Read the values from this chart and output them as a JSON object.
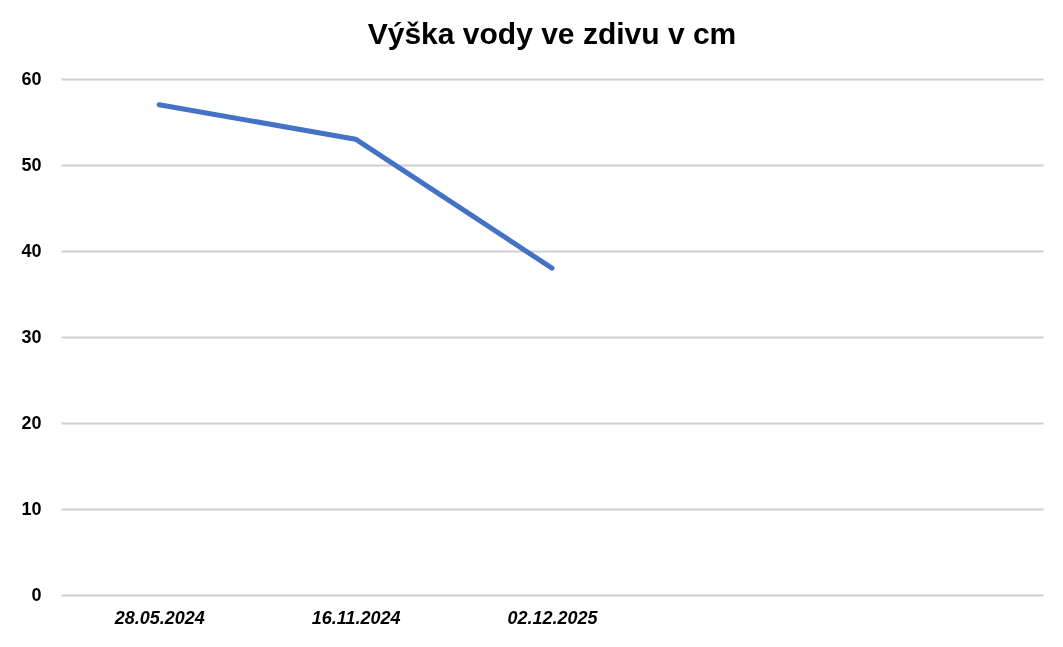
{
  "chart_data": {
    "type": "line",
    "title": "Výška vody ve zdivu v cm",
    "categories": [
      "28.05.2024",
      "16.11.2024",
      "02.12.2025",
      null,
      null
    ],
    "series": [
      {
        "color": "#4472c4",
        "values": [
          57,
          53,
          38,
          null,
          null
        ]
      }
    ],
    "ylim": [
      0,
      60
    ],
    "yticks": [
      0,
      10,
      20,
      30,
      40,
      50,
      60
    ],
    "grid": "y",
    "legend": false,
    "marker": "none",
    "line_style": "solid"
  }
}
